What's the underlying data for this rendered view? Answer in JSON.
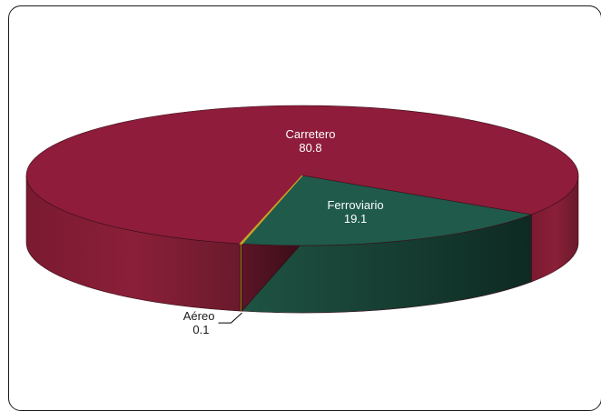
{
  "chart_data": {
    "type": "pie",
    "title": "",
    "slices": [
      {
        "label": "Carretero",
        "value": 80.8,
        "value_label": "80.8",
        "color": "#8e1c3a",
        "side_color": "#6a1a2c"
      },
      {
        "label": "Ferroviario",
        "value": 19.1,
        "value_label": "19.1",
        "color": "#1f5a4a",
        "side_color": "#123a2f"
      },
      {
        "label": "Aéreo",
        "value": 0.1,
        "value_label": "0.1",
        "color": "#c9a227",
        "side_color": "#a07d18"
      }
    ],
    "legend": "none",
    "style": "3d"
  }
}
